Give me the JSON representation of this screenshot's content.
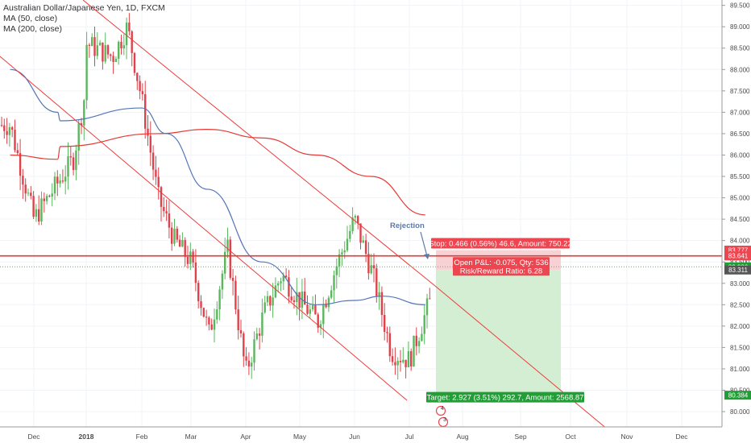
{
  "legend": {
    "title": "Australian Dollar/Japanese Yen, 1D, FXCM",
    "ma_short": "MA (50, close)",
    "ma_long": "MA (200, close)"
  },
  "colors": {
    "up": "#5ab75e",
    "down": "#e0424b",
    "ma50": "#5575b8",
    "ma200": "#e53935",
    "trendline": "#ee3a3a",
    "level": "#e53935",
    "stop_zone": "#f6c9cb",
    "target_zone": "#cdebcb",
    "label_red": "#ee4650",
    "label_green": "#219e35",
    "label_gray": "#555555",
    "annotation": "#5e79a8"
  },
  "chart_data": {
    "type": "candlestick",
    "symbol": "Australian Dollar/Japanese Yen",
    "interval": "1D",
    "source": "FXCM",
    "x_tick_labels": [
      "Dec",
      "2018",
      "Feb",
      "Mar",
      "Apr",
      "May",
      "Jun",
      "Jul",
      "Aug",
      "Sep",
      "Oct",
      "Nov",
      "Dec"
    ],
    "y_range": [
      79.85,
      89.55
    ],
    "y_ticks": [
      80.0,
      80.5,
      81.0,
      81.5,
      82.0,
      82.5,
      83.0,
      83.5,
      84.0,
      84.5,
      85.0,
      85.5,
      86.0,
      86.5,
      87.0,
      87.5,
      88.0,
      88.5,
      89.0,
      89.5
    ],
    "y_tick_labels": [
      "80.000",
      "80.500",
      "81.000",
      "81.500",
      "82.000",
      "82.500",
      "83.000",
      "83.500",
      "84.000",
      "84.500",
      "85.000",
      "85.500",
      "86.000",
      "86.500",
      "87.000",
      "87.500",
      "88.000",
      "88.500",
      "89.000",
      "89.500"
    ],
    "price_path": [
      {
        "month": "Nov",
        "price": 86.7
      },
      {
        "month": "Dec",
        "price": 84.5
      },
      {
        "month": "Dec",
        "price": 85.9
      },
      {
        "month": "2018",
        "price": 87.6
      },
      {
        "month": "2018",
        "price": 89.1
      },
      {
        "month": "Jan",
        "price": 88.3
      },
      {
        "month": "Jan",
        "price": 89.0
      },
      {
        "month": "Feb",
        "price": 87.3
      },
      {
        "month": "Feb",
        "price": 85.0
      },
      {
        "month": "Feb",
        "price": 84.0
      },
      {
        "month": "Mar",
        "price": 83.5
      },
      {
        "month": "Mar",
        "price": 81.8
      },
      {
        "month": "Mar",
        "price": 83.8
      },
      {
        "month": "Apr",
        "price": 80.9
      },
      {
        "month": "Apr",
        "price": 82.3
      },
      {
        "month": "Apr",
        "price": 83.2
      },
      {
        "month": "May",
        "price": 82.6
      },
      {
        "month": "May",
        "price": 82.1
      },
      {
        "month": "May",
        "price": 83.4
      },
      {
        "month": "Jun",
        "price": 84.5
      },
      {
        "month": "Jun",
        "price": 83.2
      },
      {
        "month": "Jun",
        "price": 81.4
      },
      {
        "month": "Jul",
        "price": 81.2
      },
      {
        "month": "Jul",
        "price": 82.4
      },
      {
        "month": "Jul",
        "price": 83.4
      }
    ],
    "ma50_path": [
      {
        "month": "Nov",
        "price": 88.0
      },
      {
        "month": "Dec",
        "price": 87.0
      },
      {
        "month": "2018",
        "price": 86.8
      },
      {
        "month": "Feb",
        "price": 87.1
      },
      {
        "month": "Feb",
        "price": 86.5
      },
      {
        "month": "Mar",
        "price": 85.2
      },
      {
        "month": "Apr",
        "price": 83.5
      },
      {
        "month": "May",
        "price": 82.5
      },
      {
        "month": "Jun",
        "price": 82.6
      },
      {
        "month": "Jun",
        "price": 82.7
      },
      {
        "month": "Jul",
        "price": 82.5
      }
    ],
    "ma200_path": [
      {
        "month": "Nov",
        "price": 86.0
      },
      {
        "month": "Dec",
        "price": 85.9
      },
      {
        "month": "2018",
        "price": 86.2
      },
      {
        "month": "Feb",
        "price": 86.5
      },
      {
        "month": "Mar",
        "price": 86.6
      },
      {
        "month": "Apr",
        "price": 86.4
      },
      {
        "month": "May",
        "price": 86.0
      },
      {
        "month": "Jun",
        "price": 85.5
      },
      {
        "month": "Jul",
        "price": 84.6
      }
    ],
    "horizontal_levels": [
      83.641
    ],
    "current_price": 83.386,
    "price_tags": [
      {
        "label": "83.777",
        "price": 83.777,
        "color": "#ee4650"
      },
      {
        "label": "83.641",
        "price": 83.641,
        "color": "#ee4650"
      },
      {
        "label": "83.386",
        "price": 83.386,
        "color": "#219e35"
      },
      {
        "label": "83.311",
        "price": 83.311,
        "color": "#555555"
      },
      {
        "label": "80.384",
        "price": 80.384,
        "color": "#219e35"
      }
    ],
    "position": {
      "side": "short",
      "entry": 83.311,
      "stop": 83.777,
      "target": 80.384,
      "stop_text": "Stop: 0.466 (0.56%) 46.6, Amount: 750.22",
      "pnl_text": "Open P&L: -0.075, Qty: 536",
      "rr_text": "Risk/Reward Ratio: 6.28",
      "target_text": "Target: 2.927 (3.51%) 292.7, Amount: 2568.87"
    },
    "annotations": [
      {
        "text": "Rejection"
      }
    ],
    "event_markers": [
      "4",
      "3"
    ]
  }
}
